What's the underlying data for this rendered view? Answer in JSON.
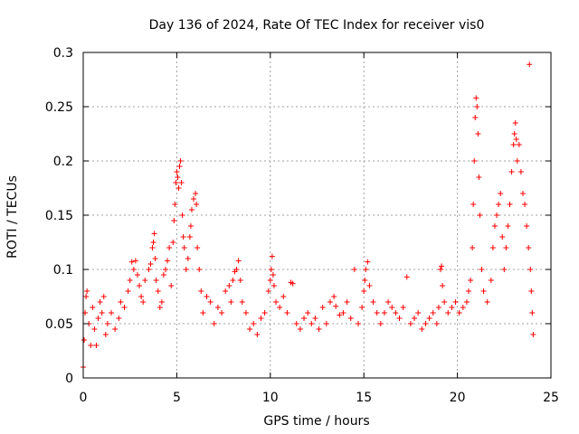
{
  "chart_data": {
    "type": "scatter",
    "title": "Day 136 of 2024, Rate Of TEC Index for receiver vis0",
    "xlabel": "GPS time / hours",
    "ylabel": "ROTI / TECUs",
    "xlim": [
      0,
      25
    ],
    "ylim": [
      0,
      0.3
    ],
    "x_ticks": [
      0,
      5,
      10,
      15,
      20,
      25
    ],
    "x_tick_labels": [
      "0",
      "5",
      "10",
      "15",
      "20",
      "25"
    ],
    "y_ticks": [
      0,
      0.05,
      0.1,
      0.15,
      0.2,
      0.25,
      0.3
    ],
    "y_tick_labels": [
      "0",
      "0.05",
      "0.1",
      "0.15",
      "0.2",
      "0.25",
      "0.3"
    ],
    "grid": true,
    "marker": "+",
    "color": "#ff0000",
    "series": [
      {
        "name": "ROTI",
        "points": [
          [
            0.0,
            0.01
          ],
          [
            0.05,
            0.035
          ],
          [
            0.1,
            0.06
          ],
          [
            0.15,
            0.075
          ],
          [
            0.2,
            0.08
          ],
          [
            0.3,
            0.05
          ],
          [
            0.4,
            0.03
          ],
          [
            0.5,
            0.065
          ],
          [
            0.6,
            0.045
          ],
          [
            0.7,
            0.03
          ],
          [
            0.8,
            0.055
          ],
          [
            0.9,
            0.07
          ],
          [
            1.0,
            0.06
          ],
          [
            1.1,
            0.075
          ],
          [
            1.2,
            0.04
          ],
          [
            1.3,
            0.05
          ],
          [
            1.5,
            0.06
          ],
          [
            1.7,
            0.045
          ],
          [
            1.9,
            0.055
          ],
          [
            2.0,
            0.07
          ],
          [
            2.2,
            0.065
          ],
          [
            2.4,
            0.08
          ],
          [
            2.5,
            0.09
          ],
          [
            2.6,
            0.107
          ],
          [
            2.7,
            0.1
          ],
          [
            2.8,
            0.108
          ],
          [
            2.9,
            0.095
          ],
          [
            3.0,
            0.085
          ],
          [
            3.1,
            0.075
          ],
          [
            3.2,
            0.07
          ],
          [
            3.3,
            0.09
          ],
          [
            3.5,
            0.1
          ],
          [
            3.6,
            0.105
          ],
          [
            3.7,
            0.12
          ],
          [
            3.75,
            0.125
          ],
          [
            3.8,
            0.133
          ],
          [
            3.85,
            0.11
          ],
          [
            3.9,
            0.09
          ],
          [
            4.0,
            0.08
          ],
          [
            4.1,
            0.065
          ],
          [
            4.2,
            0.07
          ],
          [
            4.3,
            0.095
          ],
          [
            4.4,
            0.1
          ],
          [
            4.5,
            0.108
          ],
          [
            4.6,
            0.12
          ],
          [
            4.7,
            0.085
          ],
          [
            4.8,
            0.125
          ],
          [
            4.85,
            0.145
          ],
          [
            4.9,
            0.16
          ],
          [
            4.95,
            0.18
          ],
          [
            5.0,
            0.19
          ],
          [
            5.05,
            0.185
          ],
          [
            5.1,
            0.175
          ],
          [
            5.15,
            0.195
          ],
          [
            5.2,
            0.2
          ],
          [
            5.25,
            0.18
          ],
          [
            5.3,
            0.15
          ],
          [
            5.35,
            0.13
          ],
          [
            5.4,
            0.12
          ],
          [
            5.5,
            0.1
          ],
          [
            5.6,
            0.11
          ],
          [
            5.7,
            0.13
          ],
          [
            5.75,
            0.14
          ],
          [
            5.8,
            0.155
          ],
          [
            5.9,
            0.165
          ],
          [
            6.0,
            0.17
          ],
          [
            6.05,
            0.16
          ],
          [
            6.1,
            0.12
          ],
          [
            6.2,
            0.1
          ],
          [
            6.3,
            0.08
          ],
          [
            6.4,
            0.06
          ],
          [
            6.6,
            0.075
          ],
          [
            6.8,
            0.07
          ],
          [
            7.0,
            0.05
          ],
          [
            7.2,
            0.065
          ],
          [
            7.4,
            0.06
          ],
          [
            7.6,
            0.08
          ],
          [
            7.8,
            0.085
          ],
          [
            7.9,
            0.07
          ],
          [
            8.0,
            0.09
          ],
          [
            8.1,
            0.098
          ],
          [
            8.2,
            0.1
          ],
          [
            8.3,
            0.108
          ],
          [
            8.4,
            0.09
          ],
          [
            8.5,
            0.07
          ],
          [
            8.7,
            0.06
          ],
          [
            8.9,
            0.045
          ],
          [
            9.1,
            0.05
          ],
          [
            9.3,
            0.04
          ],
          [
            9.5,
            0.055
          ],
          [
            9.7,
            0.06
          ],
          [
            9.9,
            0.08
          ],
          [
            10.0,
            0.09
          ],
          [
            10.05,
            0.1
          ],
          [
            10.1,
            0.112
          ],
          [
            10.15,
            0.095
          ],
          [
            10.2,
            0.085
          ],
          [
            10.3,
            0.07
          ],
          [
            10.5,
            0.065
          ],
          [
            10.7,
            0.075
          ],
          [
            10.9,
            0.06
          ],
          [
            11.1,
            0.088
          ],
          [
            11.2,
            0.087
          ],
          [
            11.4,
            0.05
          ],
          [
            11.6,
            0.045
          ],
          [
            11.8,
            0.055
          ],
          [
            12.0,
            0.06
          ],
          [
            12.2,
            0.05
          ],
          [
            12.4,
            0.055
          ],
          [
            12.6,
            0.045
          ],
          [
            12.8,
            0.065
          ],
          [
            13.0,
            0.05
          ],
          [
            13.2,
            0.07
          ],
          [
            13.4,
            0.075
          ],
          [
            13.5,
            0.066
          ],
          [
            13.7,
            0.058
          ],
          [
            13.9,
            0.06
          ],
          [
            14.1,
            0.07
          ],
          [
            14.3,
            0.055
          ],
          [
            14.5,
            0.1
          ],
          [
            14.7,
            0.05
          ],
          [
            14.9,
            0.065
          ],
          [
            15.0,
            0.08
          ],
          [
            15.05,
            0.09
          ],
          [
            15.1,
            0.1
          ],
          [
            15.2,
            0.107
          ],
          [
            15.3,
            0.085
          ],
          [
            15.5,
            0.07
          ],
          [
            15.7,
            0.06
          ],
          [
            15.9,
            0.05
          ],
          [
            16.1,
            0.06
          ],
          [
            16.3,
            0.07
          ],
          [
            16.5,
            0.065
          ],
          [
            16.7,
            0.06
          ],
          [
            16.9,
            0.055
          ],
          [
            17.1,
            0.065
          ],
          [
            17.3,
            0.093
          ],
          [
            17.5,
            0.05
          ],
          [
            17.7,
            0.055
          ],
          [
            17.9,
            0.06
          ],
          [
            18.1,
            0.045
          ],
          [
            18.3,
            0.05
          ],
          [
            18.5,
            0.055
          ],
          [
            18.7,
            0.06
          ],
          [
            18.9,
            0.05
          ],
          [
            19.0,
            0.065
          ],
          [
            19.1,
            0.1
          ],
          [
            19.15,
            0.103
          ],
          [
            19.2,
            0.085
          ],
          [
            19.3,
            0.07
          ],
          [
            19.5,
            0.06
          ],
          [
            19.7,
            0.065
          ],
          [
            19.9,
            0.07
          ],
          [
            20.1,
            0.06
          ],
          [
            20.3,
            0.065
          ],
          [
            20.5,
            0.07
          ],
          [
            20.6,
            0.08
          ],
          [
            20.7,
            0.09
          ],
          [
            20.8,
            0.12
          ],
          [
            20.85,
            0.16
          ],
          [
            20.9,
            0.2
          ],
          [
            20.95,
            0.24
          ],
          [
            21.0,
            0.258
          ],
          [
            21.05,
            0.25
          ],
          [
            21.1,
            0.225
          ],
          [
            21.15,
            0.185
          ],
          [
            21.2,
            0.15
          ],
          [
            21.3,
            0.1
          ],
          [
            21.4,
            0.08
          ],
          [
            21.6,
            0.07
          ],
          [
            21.8,
            0.09
          ],
          [
            21.9,
            0.12
          ],
          [
            22.0,
            0.14
          ],
          [
            22.1,
            0.15
          ],
          [
            22.2,
            0.16
          ],
          [
            22.3,
            0.17
          ],
          [
            22.4,
            0.13
          ],
          [
            22.5,
            0.1
          ],
          [
            22.6,
            0.12
          ],
          [
            22.7,
            0.14
          ],
          [
            22.8,
            0.16
          ],
          [
            22.9,
            0.19
          ],
          [
            23.0,
            0.215
          ],
          [
            23.05,
            0.225
          ],
          [
            23.1,
            0.235
          ],
          [
            23.15,
            0.22
          ],
          [
            23.2,
            0.2
          ],
          [
            23.3,
            0.215
          ],
          [
            23.4,
            0.19
          ],
          [
            23.5,
            0.17
          ],
          [
            23.6,
            0.16
          ],
          [
            23.7,
            0.14
          ],
          [
            23.8,
            0.12
          ],
          [
            23.85,
            0.289
          ],
          [
            23.9,
            0.1
          ],
          [
            23.95,
            0.08
          ],
          [
            24.0,
            0.06
          ],
          [
            24.05,
            0.04
          ]
        ]
      }
    ]
  }
}
